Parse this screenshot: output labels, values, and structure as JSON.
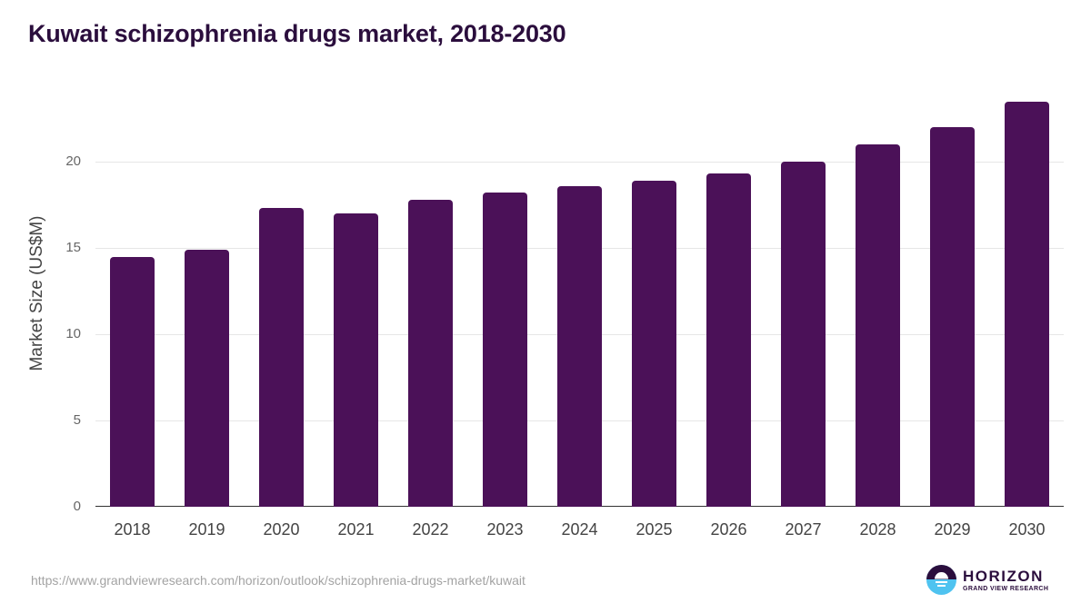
{
  "title": "Kuwait schizophrenia drugs market, 2018-2030",
  "source_url": "https://www.grandviewresearch.com/horizon/outlook/schizophrenia-drugs-market/kuwait",
  "logo": {
    "name": "HORIZON",
    "subtitle": "GRAND VIEW RESEARCH",
    "icon": "horizon-sun-logo-icon"
  },
  "colors": {
    "bar": "#4b1158",
    "title": "#2b0e3d",
    "logo_accent": "#4fc3f0"
  },
  "chart_data": {
    "type": "bar",
    "title": "Kuwait schizophrenia drugs market, 2018-2030",
    "xlabel": "",
    "ylabel": "Market Size (US$M)",
    "categories": [
      "2018",
      "2019",
      "2020",
      "2021",
      "2022",
      "2023",
      "2024",
      "2025",
      "2026",
      "2027",
      "2028",
      "2029",
      "2030"
    ],
    "values": [
      14.5,
      14.9,
      17.3,
      17.0,
      17.8,
      18.2,
      18.6,
      18.9,
      19.3,
      20.0,
      21.0,
      22.0,
      23.5
    ],
    "yticks": [
      "0",
      "5",
      "10",
      "15",
      "20"
    ],
    "ylim": [
      0,
      25
    ],
    "grid": true,
    "legend": null
  }
}
